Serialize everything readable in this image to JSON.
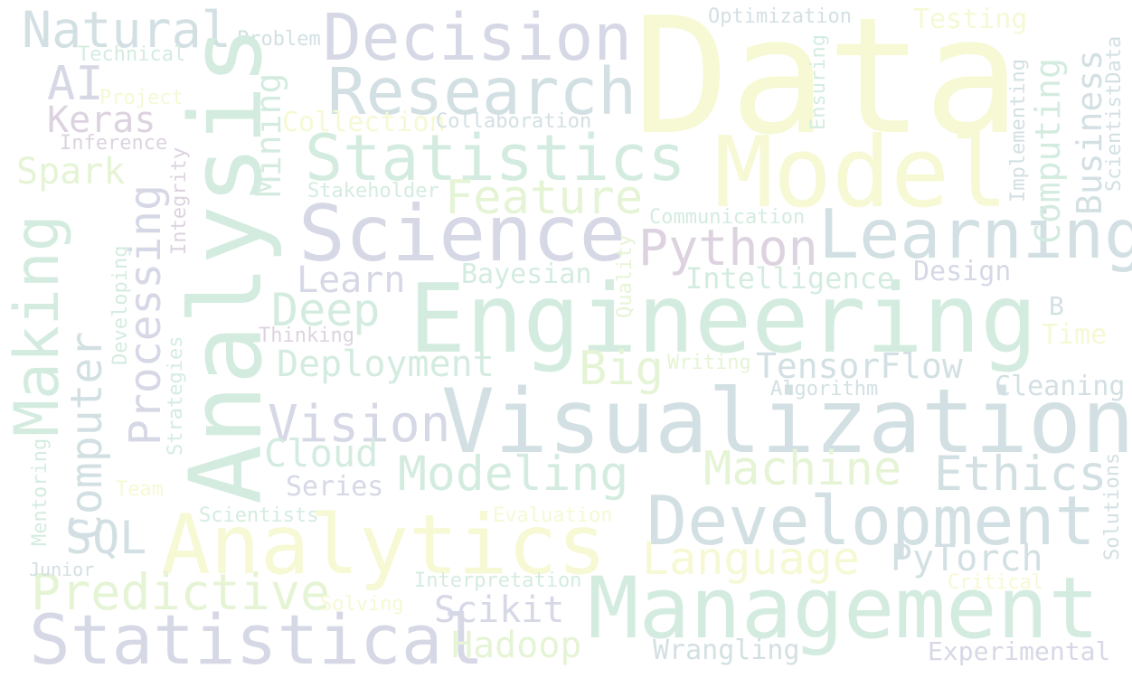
{
  "palette": {
    "lavender": "#d6d8e6",
    "blue_grey": "#d3e0e3",
    "mint": "#d4ece0",
    "pale_yellow": "#f6f9d4",
    "light_green": "#e6f4d6",
    "mauve": "#ddd3e0"
  },
  "words": [
    {
      "text": "Data",
      "color": "pale_yellow"
    },
    {
      "text": "Analysis",
      "color": "mint"
    },
    {
      "text": "Engineering",
      "color": "mint"
    },
    {
      "text": "Visualization",
      "color": "blue_grey"
    },
    {
      "text": "Analytics",
      "color": "pale_yellow"
    },
    {
      "text": "Management",
      "color": "mint"
    },
    {
      "text": "Model",
      "color": "pale_yellow"
    },
    {
      "text": "Science",
      "color": "lavender"
    },
    {
      "text": "Statistical",
      "color": "lavender"
    },
    {
      "text": "Development",
      "color": "blue_grey"
    },
    {
      "text": "Learning",
      "color": "blue_grey"
    },
    {
      "text": "Statistics",
      "color": "mint"
    },
    {
      "text": "Decision",
      "color": "lavender"
    },
    {
      "text": "Research",
      "color": "blue_grey"
    },
    {
      "text": "Making",
      "color": "mint"
    },
    {
      "text": "Processing",
      "color": "lavender"
    },
    {
      "text": "Computer",
      "color": "blue_grey"
    },
    {
      "text": "Predictive",
      "color": "light_green"
    },
    {
      "text": "Modeling",
      "color": "mint"
    },
    {
      "text": "Machine",
      "color": "light_green"
    },
    {
      "text": "Ethics",
      "color": "blue_grey"
    },
    {
      "text": "Language",
      "color": "pale_yellow"
    },
    {
      "text": "Python",
      "color": "mauve"
    },
    {
      "text": "Feature",
      "color": "light_green"
    },
    {
      "text": "Vision",
      "color": "lavender"
    },
    {
      "text": "Natural",
      "color": "blue_grey"
    },
    {
      "text": "Big",
      "color": "light_green"
    },
    {
      "text": "TensorFlow",
      "color": "blue_grey"
    },
    {
      "text": "PyTorch",
      "color": "blue_grey"
    },
    {
      "text": "Deployment",
      "color": "mint"
    },
    {
      "text": "Computing",
      "color": "mint"
    },
    {
      "text": "Business",
      "color": "blue_grey"
    },
    {
      "text": "Deep",
      "color": "mint"
    },
    {
      "text": "Cloud",
      "color": "mint"
    },
    {
      "text": "SQL",
      "color": "blue_grey"
    },
    {
      "text": "Scikit",
      "color": "lavender"
    },
    {
      "text": "Hadoop",
      "color": "light_green"
    },
    {
      "text": "Mining",
      "color": "mint"
    },
    {
      "text": "AI",
      "color": "lavender"
    },
    {
      "text": "Keras",
      "color": "mauve"
    },
    {
      "text": "Learn",
      "color": "lavender"
    },
    {
      "text": "Spark",
      "color": "light_green"
    },
    {
      "text": "Series",
      "color": "lavender"
    },
    {
      "text": "Wrangling",
      "color": "blue_grey"
    },
    {
      "text": "Experimental",
      "color": "lavender"
    },
    {
      "text": "Bayesian",
      "color": "mint"
    },
    {
      "text": "Intelligence",
      "color": "mint"
    },
    {
      "text": "Design",
      "color": "lavender"
    },
    {
      "text": "Cleaning",
      "color": "blue_grey"
    },
    {
      "text": "Collection",
      "color": "pale_yellow"
    },
    {
      "text": "Time",
      "color": "pale_yellow"
    },
    {
      "text": "Testing",
      "color": "pale_yellow"
    },
    {
      "text": "Optimization",
      "color": "blue_grey"
    },
    {
      "text": "Collaboration",
      "color": "blue_grey"
    },
    {
      "text": "Stakeholder",
      "color": "mint"
    },
    {
      "text": "Communication",
      "color": "mint"
    },
    {
      "text": "Algorithm",
      "color": "blue_grey"
    },
    {
      "text": "Interpretation",
      "color": "mint"
    },
    {
      "text": "Evaluation",
      "color": "pale_yellow"
    },
    {
      "text": "Scientists",
      "color": "mint"
    },
    {
      "text": "Writing",
      "color": "light_green"
    },
    {
      "text": "Thinking",
      "color": "mauve"
    },
    {
      "text": "Problem",
      "color": "blue_grey"
    },
    {
      "text": "Technical",
      "color": "mint"
    },
    {
      "text": "Project",
      "color": "pale_yellow"
    },
    {
      "text": "Inference",
      "color": "mauve"
    },
    {
      "text": "Solving",
      "color": "pale_yellow"
    },
    {
      "text": "Critical",
      "color": "pale_yellow"
    },
    {
      "text": "Team",
      "color": "pale_yellow"
    },
    {
      "text": "Junior",
      "color": "blue_grey"
    },
    {
      "text": "B",
      "color": "blue_grey"
    },
    {
      "text": "Integrity",
      "color": "mauve"
    },
    {
      "text": "Developing",
      "color": "mint"
    },
    {
      "text": "Strategies",
      "color": "mint"
    },
    {
      "text": "Mentoring",
      "color": "mint"
    },
    {
      "text": "Quality",
      "color": "light_green"
    },
    {
      "text": "Ensuring",
      "color": "mint"
    },
    {
      "text": "Implementing",
      "color": "blue_grey"
    },
    {
      "text": "ScientistData",
      "color": "blue_grey"
    },
    {
      "text": "Solutions",
      "color": "blue_grey"
    }
  ]
}
